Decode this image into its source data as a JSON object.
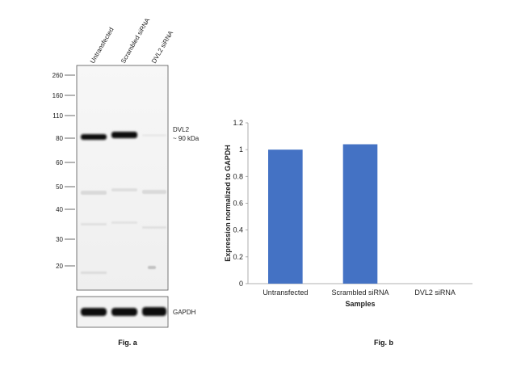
{
  "figure_a": {
    "caption": "Fig. a",
    "lanes": [
      "Untransfected",
      "Scrambled siRNA",
      "DVL2 siRNA"
    ],
    "ladder": [
      "260",
      "160",
      "110",
      "80",
      "60",
      "50",
      "40",
      "30",
      "20"
    ],
    "target_label": "DVL2",
    "target_size": "~ 90 kDa",
    "control_label": "GAPDH"
  },
  "figure_b": {
    "caption": "Fig. b"
  },
  "chart_data": {
    "type": "bar",
    "categories": [
      "Untransfected",
      "Scrambled siRNA",
      "DVL2 siRNA"
    ],
    "values": [
      1.0,
      1.04,
      0.0
    ],
    "xlabel": "Samples",
    "ylabel": "Expression normalized to GAPDH",
    "ylim": [
      0,
      1.2
    ],
    "yticks": [
      "0",
      "0.2",
      "0.4",
      "0.6",
      "0.8",
      "1",
      "1.2"
    ],
    "bar_color": "#4472C4",
    "grid": false,
    "legend": "none"
  }
}
